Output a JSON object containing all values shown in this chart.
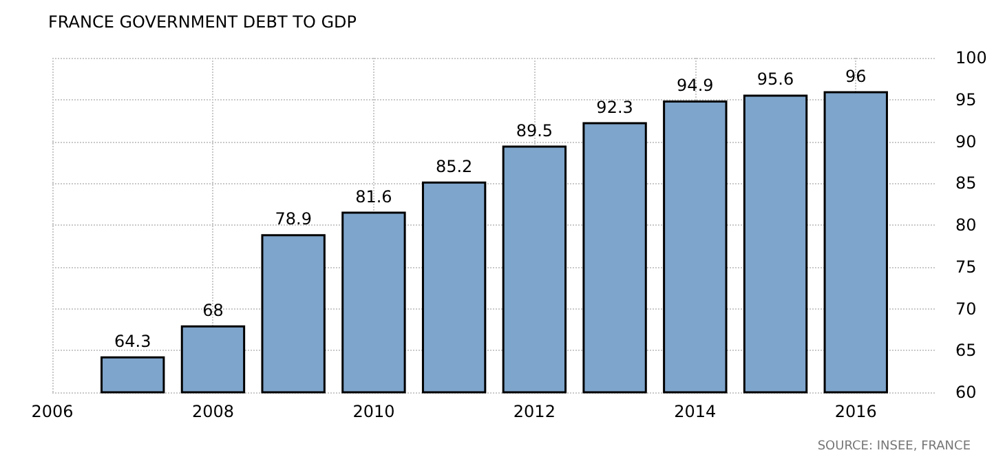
{
  "chart_data": {
    "type": "bar",
    "title": "FRANCE GOVERNMENT DEBT TO GDP",
    "x": [
      2007,
      2008,
      2009,
      2010,
      2011,
      2012,
      2013,
      2014,
      2015,
      2016
    ],
    "values": [
      64.3,
      68,
      78.9,
      81.6,
      85.2,
      89.5,
      92.3,
      94.9,
      95.6,
      96
    ],
    "color": "#7ea5cb",
    "xlim": [
      2006,
      2017
    ],
    "xticks": [
      2006,
      2008,
      2010,
      2012,
      2014,
      2016
    ],
    "ylim": [
      60,
      100
    ],
    "yticks": [
      60,
      65,
      70,
      75,
      80,
      85,
      90,
      95,
      100
    ],
    "grid": true,
    "data_labels": true,
    "annotations": [
      "SOURCE: INSEE, FRANCE"
    ]
  }
}
